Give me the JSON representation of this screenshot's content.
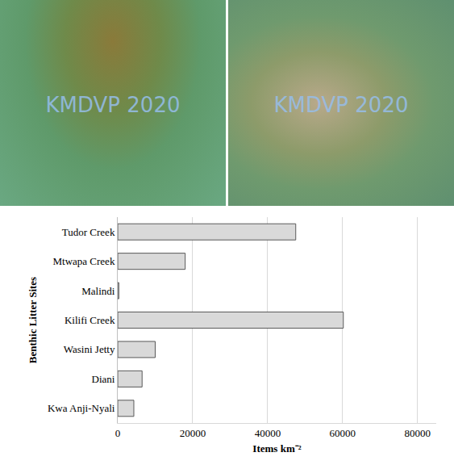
{
  "photo_watermarks": [
    "KMDVP 2020",
    "KMDVP 2020"
  ],
  "chart_data": {
    "type": "bar",
    "orientation": "horizontal",
    "categories": [
      "Kwa Anji-Nyali",
      "Diani",
      "Wasini Jetty",
      "Kilifi Creek",
      "Malindi",
      "Mtwapa Creek",
      "Tudor Creek"
    ],
    "values": [
      4300,
      6500,
      10000,
      60200,
      300,
      18000,
      47500
    ],
    "color": "#d9d9d9",
    "xlim": [
      0,
      85000
    ],
    "xticks": [
      0,
      20000,
      40000,
      60000,
      80000
    ],
    "x_label": "Items km⁻²",
    "y_label": "Benthic Litter Sites",
    "grid": true
  }
}
